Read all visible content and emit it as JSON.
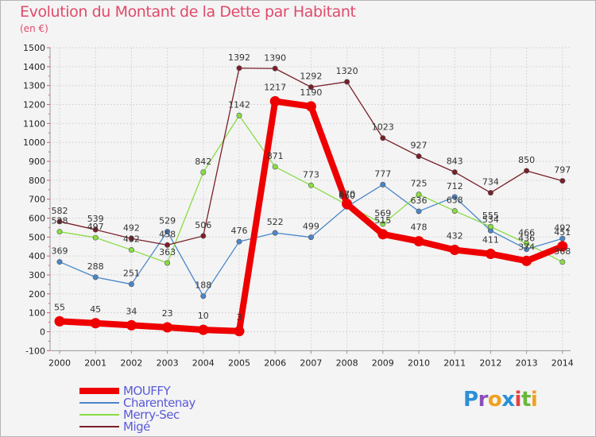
{
  "title": "Evolution du Montant de la Dette par Habitant",
  "unit": "(en €)",
  "logo": {
    "text": "Proxiti",
    "letters": [
      "P",
      "r",
      "o",
      "x",
      "i",
      "t",
      "i"
    ],
    "colors": [
      "#2a8fd8",
      "#8a50b8",
      "#f0a020",
      "#2a8fd8",
      "#e84040",
      "#6ab83a",
      "#f0a020"
    ]
  },
  "chart_data": {
    "type": "line",
    "x": [
      "2000",
      "2001",
      "2002",
      "2003",
      "2004",
      "2005",
      "2006",
      "2007",
      "2008",
      "2009",
      "2010",
      "2011",
      "2012",
      "2013",
      "2014"
    ],
    "ylim": [
      -100,
      1500
    ],
    "yticks": [
      "-100",
      "0",
      "100",
      "200",
      "300",
      "400",
      "500",
      "600",
      "700",
      "800",
      "900",
      "1000",
      "1100",
      "1200",
      "1300",
      "1400",
      "1500"
    ],
    "grid": true,
    "legend_position": "bottom-left",
    "series": [
      {
        "name": "MOUFFY",
        "color": "#ee0000",
        "values": [
          55,
          45,
          34,
          23,
          10,
          3,
          1217,
          1190,
          675,
          515,
          478,
          432,
          411,
          374,
          451
        ],
        "labels": [
          "55",
          "45",
          "34",
          "23",
          "10",
          "3",
          "1217",
          "1190",
          "",
          "515",
          "478",
          "432",
          "411",
          "374",
          "451"
        ]
      },
      {
        "name": "Charentenay",
        "color": "#4a86c8",
        "values": [
          369,
          288,
          251,
          529,
          188,
          476,
          522,
          499,
          660,
          777,
          636,
          712,
          534,
          436,
          492
        ],
        "labels": [
          "369",
          "288",
          "251",
          "529",
          "188",
          "476",
          "522",
          "499",
          "660",
          "777",
          "636",
          "712",
          "534",
          "436",
          "492"
        ]
      },
      {
        "name": "Merry-Sec",
        "color": "#88dd44",
        "values": [
          528,
          497,
          432,
          363,
          842,
          1142,
          871,
          773,
          670,
          569,
          725,
          638,
          555,
          466,
          368
        ],
        "labels": [
          "528",
          "497",
          "432",
          "363",
          "842",
          "1142",
          "871",
          "773",
          "670",
          "569",
          "725",
          "638",
          "555",
          "466",
          "368"
        ]
      },
      {
        "name": "Migé",
        "color": "#7a1f2a",
        "values": [
          582,
          539,
          492,
          458,
          506,
          1392,
          1390,
          1292,
          1320,
          1023,
          927,
          843,
          734,
          850,
          797
        ],
        "labels": [
          "582",
          "539",
          "492",
          "458",
          "506",
          "1392",
          "1390",
          "1292",
          "1320",
          "1023",
          "927",
          "843",
          "734",
          "850",
          "797"
        ]
      }
    ]
  }
}
